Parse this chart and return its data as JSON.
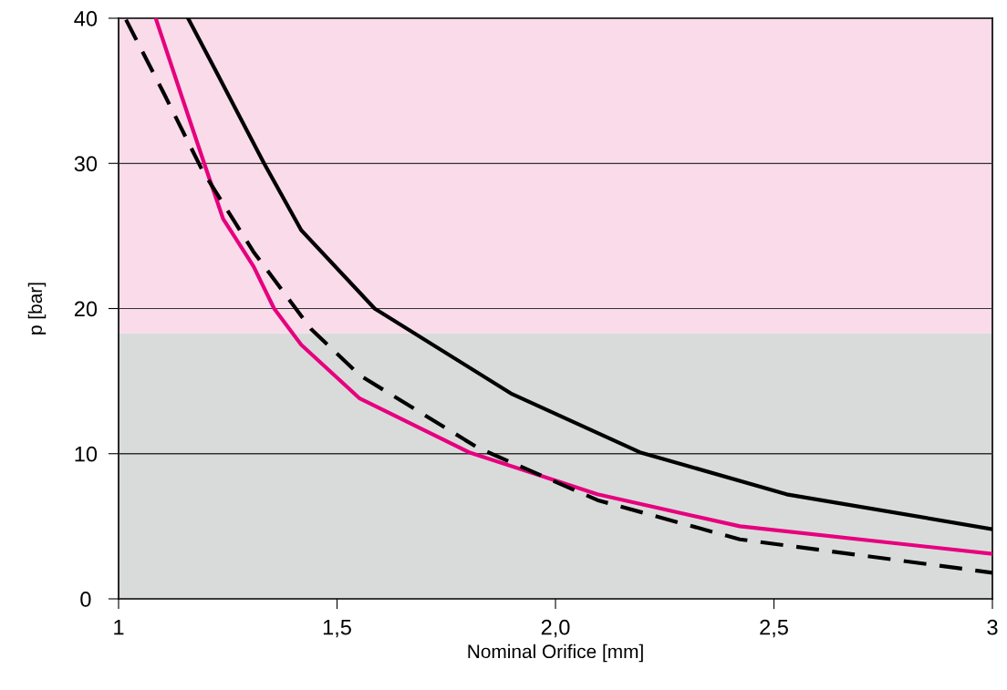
{
  "chart_data": {
    "type": "line",
    "xlabel": "Nominal Orifice [mm]",
    "ylabel": "p [bar]",
    "xlim": [
      1,
      3
    ],
    "xticks": [
      {
        "value": 1,
        "label": "1"
      },
      {
        "value": 1.5,
        "label": "1,5"
      },
      {
        "value": 2.0,
        "label": "2,0"
      },
      {
        "value": 2.5,
        "label": "2,5"
      },
      {
        "value": 3,
        "label": "3"
      }
    ],
    "ylim": [
      0,
      40
    ],
    "yticks": [
      {
        "value": 0,
        "label": "0"
      },
      {
        "value": 10,
        "label": "10"
      },
      {
        "value": 20,
        "label": "20"
      },
      {
        "value": 30,
        "label": "30"
      },
      {
        "value": 40,
        "label": "40"
      }
    ],
    "grid": "y",
    "marker": "none",
    "bands": [
      {
        "axis": "y",
        "from": 0,
        "to": 18.3,
        "color": "#d9dbdb"
      },
      {
        "axis": "y",
        "from": 18.3,
        "to": 40,
        "color": "#f9dbe9"
      }
    ],
    "series": [
      {
        "color": "#000000",
        "line_style": "solid",
        "x": [
          1.159,
          1.222,
          1.333,
          1.396,
          1.418,
          1.586,
          1.901,
          2.193,
          2.529,
          3.0
        ],
        "values": [
          40,
          36.4,
          30.0,
          26.6,
          25.4,
          20.0,
          14.1,
          10.1,
          7.2,
          4.8
        ]
      },
      {
        "color": "#e6007e",
        "line_style": "solid",
        "x": [
          1.085,
          1.148,
          1.196,
          1.239,
          1.309,
          1.356,
          1.418,
          1.552,
          1.802,
          2.096,
          2.422,
          3.0
        ],
        "values": [
          40,
          34.3,
          30.0,
          26.2,
          22.9,
          20.0,
          17.5,
          13.8,
          10.1,
          7.2,
          5.0,
          3.1
        ]
      },
      {
        "color": "#000000",
        "line_style": "dashed",
        "x": [
          1.017,
          1.104,
          1.192,
          1.309,
          1.44,
          1.552,
          1.823,
          2.096,
          2.422,
          3.0
        ],
        "values": [
          39.9,
          34.8,
          29.5,
          23.9,
          18.6,
          15.4,
          10.4,
          6.8,
          4.1,
          1.8
        ]
      }
    ]
  }
}
